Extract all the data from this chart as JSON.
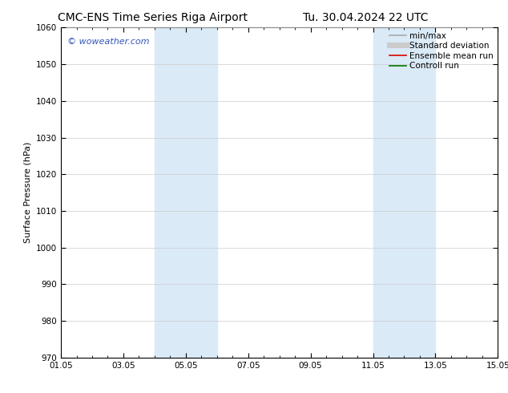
{
  "title_left": "CMC-ENS Time Series Riga Airport",
  "title_right": "Tu. 30.04.2024 22 UTC",
  "ylabel": "Surface Pressure (hPa)",
  "ylim": [
    970,
    1060
  ],
  "yticks": [
    970,
    980,
    990,
    1000,
    1010,
    1020,
    1030,
    1040,
    1050,
    1060
  ],
  "xlim_start": 0,
  "xlim_end": 14,
  "xtick_labels": [
    "01.05",
    "03.05",
    "05.05",
    "07.05",
    "09.05",
    "11.05",
    "13.05",
    "15.05"
  ],
  "xtick_positions": [
    0,
    2,
    4,
    6,
    8,
    10,
    12,
    14
  ],
  "shaded_regions": [
    {
      "x_start": 3.0,
      "x_end": 5.0,
      "color": "#daeaf7"
    },
    {
      "x_start": 10.0,
      "x_end": 12.0,
      "color": "#daeaf7"
    }
  ],
  "watermark": "© woweather.com",
  "watermark_color": "#3355bb",
  "background_color": "#ffffff",
  "plot_bg_color": "#ffffff",
  "grid_color": "#cccccc",
  "legend_entries": [
    {
      "label": "min/max",
      "color": "#aaaaaa",
      "lw": 1.2,
      "style": "solid"
    },
    {
      "label": "Standard deviation",
      "color": "#cccccc",
      "lw": 5,
      "style": "solid"
    },
    {
      "label": "Ensemble mean run",
      "color": "#dd0000",
      "lw": 1.2,
      "style": "solid"
    },
    {
      "label": "Controll run",
      "color": "#007700",
      "lw": 1.2,
      "style": "solid"
    }
  ],
  "title_fontsize": 10,
  "axis_label_fontsize": 8,
  "tick_fontsize": 7.5,
  "legend_fontsize": 7.5,
  "watermark_fontsize": 8
}
